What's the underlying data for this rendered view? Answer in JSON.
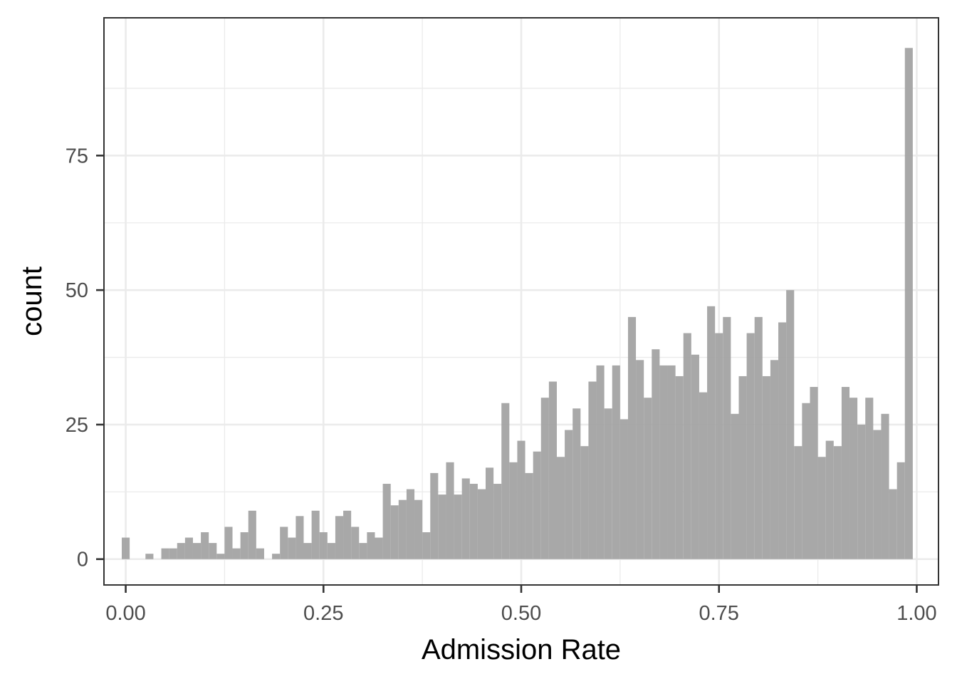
{
  "chart_data": {
    "type": "bar",
    "xlabel": "Admission Rate",
    "ylabel": "count",
    "xlim": [
      -0.0275,
      1.0275
    ],
    "ylim": [
      -4.8,
      100.6
    ],
    "x_ticks": [
      0,
      0.25,
      0.5,
      0.75,
      1
    ],
    "x_tick_labels": [
      "0.00",
      "0.25",
      "0.50",
      "0.75",
      "1.00"
    ],
    "y_ticks": [
      0,
      25,
      50,
      75
    ],
    "y_tick_labels": [
      "0",
      "25",
      "50",
      "75"
    ],
    "grid": true,
    "bin_width": 0.01,
    "bin_start": -0.005,
    "values": [
      4,
      0,
      0,
      1,
      0,
      2,
      2,
      3,
      4,
      3,
      5,
      3,
      1,
      6,
      2,
      5,
      9,
      2,
      0,
      1,
      6,
      4,
      8,
      3,
      9,
      5,
      3,
      8,
      9,
      6,
      3,
      5,
      4,
      14,
      10,
      11,
      13,
      11,
      5,
      16,
      12,
      18,
      12,
      15,
      14,
      13,
      17,
      14,
      29,
      18,
      22,
      16,
      20,
      30,
      33,
      19,
      24,
      28,
      21,
      33,
      36,
      28,
      36,
      26,
      45,
      37,
      30,
      39,
      36,
      36,
      34,
      42,
      38,
      31,
      47,
      42,
      45,
      27,
      34,
      42,
      45,
      34,
      37,
      44,
      50,
      21,
      29,
      32,
      19,
      22,
      21,
      32,
      30,
      25,
      30,
      24,
      27,
      13,
      18,
      95
    ],
    "colors": {
      "bar": "#a3a3a3",
      "grid": "#ebebeb",
      "panel_border": "#333333",
      "tick": "#333333"
    }
  }
}
